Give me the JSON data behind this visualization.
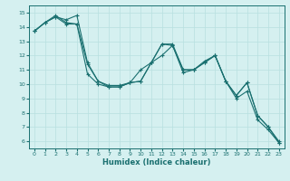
{
  "xlabel": "Humidex (Indice chaleur)",
  "ylabel": "",
  "bg_color": "#d5f0f0",
  "line_color": "#1a7070",
  "grid_color": "#b8e0e0",
  "ylim": [
    5.5,
    15.5
  ],
  "xlim": [
    -0.5,
    23.5
  ],
  "yticks": [
    6,
    7,
    8,
    9,
    10,
    11,
    12,
    13,
    14,
    15
  ],
  "xticks": [
    0,
    1,
    2,
    3,
    4,
    5,
    6,
    7,
    8,
    9,
    10,
    11,
    12,
    13,
    14,
    15,
    16,
    17,
    18,
    19,
    20,
    21,
    22,
    23
  ],
  "series": [
    [
      13.7,
      14.3,
      14.7,
      14.5,
      14.8,
      11.5,
      10.2,
      9.9,
      9.9,
      10.1,
      10.2,
      11.5,
      12.8,
      12.8,
      11.0,
      11.0,
      11.5,
      12.0,
      10.2,
      9.2,
      10.1,
      7.8,
      7.0,
      6.0
    ],
    [
      13.7,
      14.3,
      14.8,
      14.3,
      14.2,
      11.4,
      10.2,
      9.8,
      9.8,
      10.1,
      10.2,
      11.5,
      12.8,
      12.7,
      11.0,
      11.0,
      11.6,
      12.0,
      10.2,
      9.2,
      10.1,
      7.8,
      7.0,
      5.9
    ],
    [
      13.7,
      14.3,
      14.7,
      14.2,
      14.2,
      10.7,
      10.0,
      9.8,
      9.8,
      10.1,
      11.0,
      11.5,
      12.0,
      12.7,
      10.8,
      11.0,
      11.5,
      12.0,
      10.2,
      9.0,
      9.5,
      7.5,
      6.8,
      5.9
    ]
  ]
}
